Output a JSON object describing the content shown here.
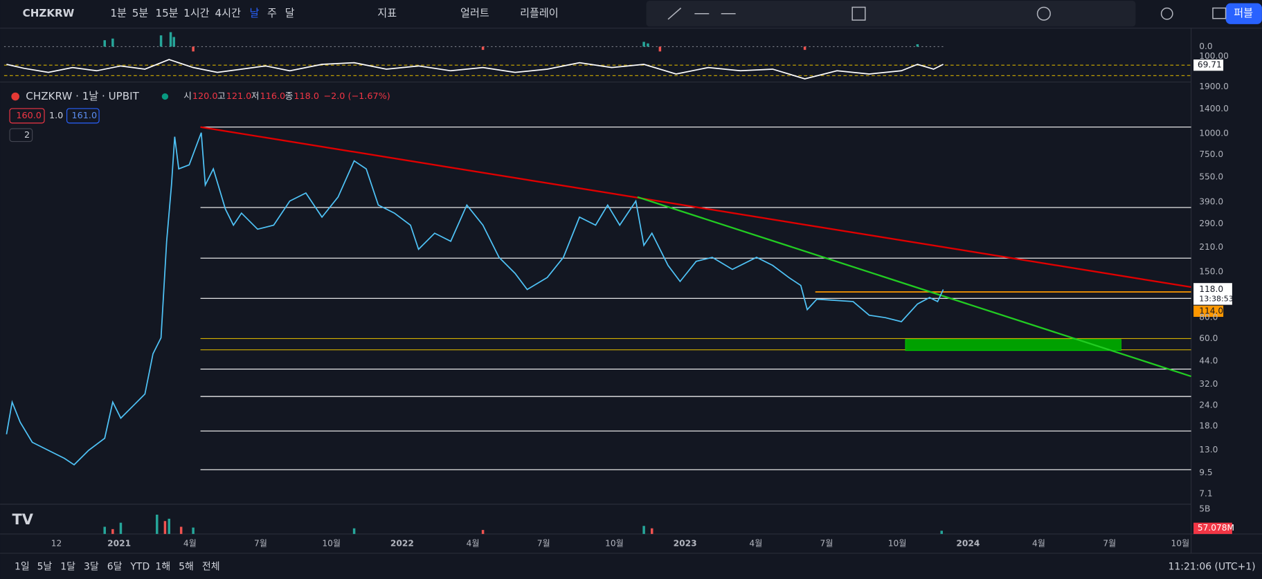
{
  "toolbar": {
    "symbol": "CHZKRW",
    "intervals": [
      "1분",
      "5분",
      "15분",
      "1시간",
      "4시간",
      "날",
      "주",
      "달"
    ],
    "indicators": "지표",
    "alert": "얼러트",
    "replay": "리플레이",
    "publish": "퍼블"
  },
  "legend": {
    "title": "CHZKRW · 1날 · UPBIT",
    "ohlc": [
      {
        "label": "시",
        "value": "120.0"
      },
      {
        "label": "고",
        "value": "121.0"
      },
      {
        "label": "저",
        "value": "116.0"
      },
      {
        "label": "종",
        "value": "118.0"
      }
    ],
    "change": "−2.0 (−1.67%)",
    "inputs": [
      "160.0",
      "1.0",
      "161.0"
    ],
    "collapse": "2"
  },
  "price_axis": {
    "ticks": [
      {
        "value": 1900,
        "label": "1900.0"
      },
      {
        "value": 1400,
        "label": "1400.0"
      },
      {
        "value": 1000,
        "label": "1000.0"
      },
      {
        "value": 750,
        "label": "750.0"
      },
      {
        "value": 550,
        "label": "550.0"
      },
      {
        "value": 390,
        "label": "390.0"
      },
      {
        "value": 290,
        "label": "290.0"
      },
      {
        "value": 210,
        "label": "210.0"
      },
      {
        "value": 150,
        "label": "150.0"
      },
      {
        "value": 80,
        "label": "80.0"
      },
      {
        "value": 60,
        "label": "60.0"
      },
      {
        "value": 44,
        "label": "44.0"
      },
      {
        "value": 32,
        "label": "32.0"
      },
      {
        "value": 24,
        "label": "24.0"
      },
      {
        "value": 18,
        "label": "18.0"
      },
      {
        "value": 13,
        "label": "13.0"
      },
      {
        "value": 9.5,
        "label": "9.5"
      },
      {
        "value": 7.1,
        "label": "7.1"
      }
    ],
    "log": true,
    "last_price": "118.0",
    "countdown": "13:38:53",
    "line_price": "114.0"
  },
  "oscillator": {
    "top": "100.00",
    "value": "69.71",
    "zero": "0.0"
  },
  "volume": {
    "top": "5B",
    "value": "57.078M"
  },
  "time_axis": [
    "12",
    "2021",
    "4월",
    "7월",
    "10월",
    "2022",
    "4월",
    "7월",
    "10월",
    "2023",
    "4월",
    "7월",
    "10월",
    "2024",
    "4월",
    "7월",
    "10월"
  ],
  "footer": {
    "ranges": [
      "1일",
      "5날",
      "1달",
      "3달",
      "6달",
      "YTD",
      "1해",
      "5해",
      "전체"
    ],
    "clock": "11:21:06 (UTC+1)"
  }
}
